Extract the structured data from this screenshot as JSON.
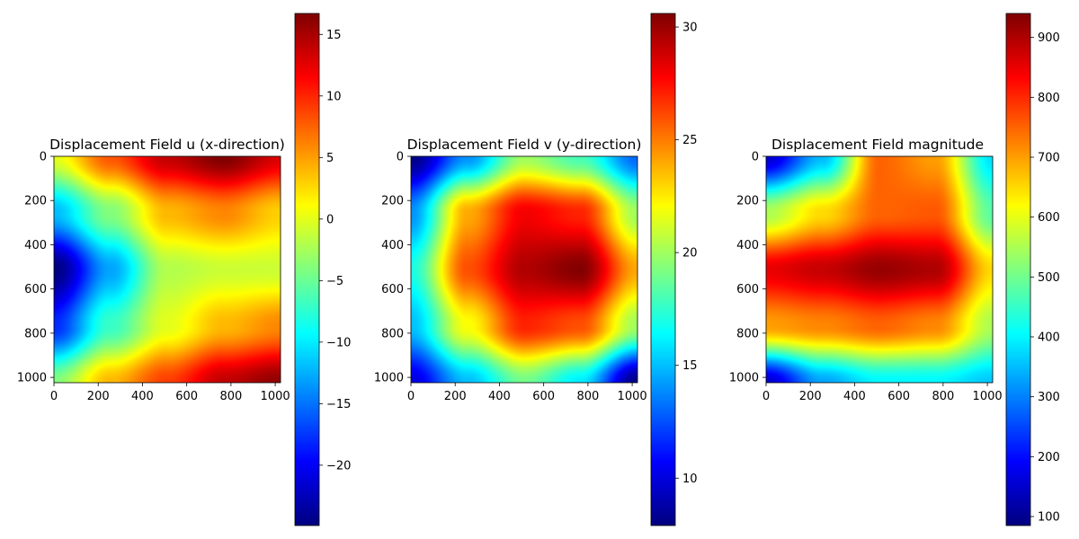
{
  "figure": {
    "colormap": "jet"
  },
  "chart_data": [
    {
      "type": "heatmap",
      "title": "Displacement Field u (x-direction)",
      "xlabel": "",
      "ylabel": "",
      "xlim": [
        0,
        1024
      ],
      "ylim": [
        1024,
        0
      ],
      "xticks": [
        0,
        200,
        400,
        600,
        800,
        1000
      ],
      "yticks": [
        0,
        200,
        400,
        600,
        800,
        1000
      ],
      "colorbar": {
        "min": -24.9,
        "max": 16.7,
        "ticks": [
          15,
          10,
          5,
          0,
          -5,
          -10,
          -15,
          -20
        ],
        "tick_labels": [
          "15",
          "10",
          "5",
          "0",
          "−5",
          "−10",
          "−15",
          "−20"
        ]
      },
      "field_grid": {
        "x": [
          0,
          256,
          512,
          768,
          1024
        ],
        "y": [
          0,
          256,
          512,
          768,
          1024
        ],
        "values": [
          [
            0,
            8,
            14,
            16.7,
            13
          ],
          [
            -12,
            -4,
            4,
            6,
            3
          ],
          [
            -24.9,
            -13,
            -2,
            -1,
            -1
          ],
          [
            -18,
            -7,
            0,
            4,
            6
          ],
          [
            -4,
            4,
            9,
            14,
            16
          ]
        ]
      }
    },
    {
      "type": "heatmap",
      "title": "Displacement Field v (y-direction)",
      "xlabel": "",
      "ylabel": "",
      "xlim": [
        0,
        1024
      ],
      "ylim": [
        1024,
        0
      ],
      "xticks": [
        0,
        200,
        400,
        600,
        800,
        1000
      ],
      "yticks": [
        0,
        200,
        400,
        600,
        800,
        1000
      ],
      "colorbar": {
        "min": 7.9,
        "max": 30.6,
        "ticks": [
          30,
          25,
          20,
          15,
          10
        ],
        "tick_labels": [
          "30",
          "25",
          "20",
          "15",
          "10"
        ]
      },
      "field_grid": {
        "x": [
          0,
          256,
          512,
          768,
          1024
        ],
        "y": [
          0,
          256,
          512,
          768,
          1024
        ],
        "values": [
          [
            8,
            14,
            20,
            18,
            13
          ],
          [
            14,
            24,
            28,
            27,
            20
          ],
          [
            17,
            26,
            29.5,
            30.5,
            24
          ],
          [
            15,
            22,
            27,
            26,
            20
          ],
          [
            10,
            15,
            19,
            16,
            8
          ]
        ]
      }
    },
    {
      "type": "heatmap",
      "title": "Displacement Field magnitude",
      "xlabel": "",
      "ylabel": "",
      "xlim": [
        0,
        1024
      ],
      "ylim": [
        1024,
        0
      ],
      "xticks": [
        0,
        200,
        400,
        600,
        800,
        1000
      ],
      "yticks": [
        0,
        200,
        400,
        600,
        800,
        1000
      ],
      "colorbar": {
        "min": 85,
        "max": 940,
        "ticks": [
          900,
          800,
          700,
          600,
          500,
          400,
          300,
          200,
          100
        ],
        "tick_labels": [
          "900",
          "800",
          "700",
          "600",
          "500",
          "400",
          "300",
          "200",
          "100"
        ]
      },
      "field_grid": {
        "x": [
          0,
          256,
          512,
          768,
          1024
        ],
        "y": [
          0,
          256,
          512,
          768,
          1024
        ],
        "values": [
          [
            150,
            350,
            750,
            700,
            380
          ],
          [
            550,
            650,
            750,
            760,
            480
          ],
          [
            850,
            880,
            920,
            900,
            650
          ],
          [
            700,
            720,
            750,
            720,
            550
          ],
          [
            150,
            330,
            400,
            400,
            360
          ]
        ]
      }
    }
  ]
}
